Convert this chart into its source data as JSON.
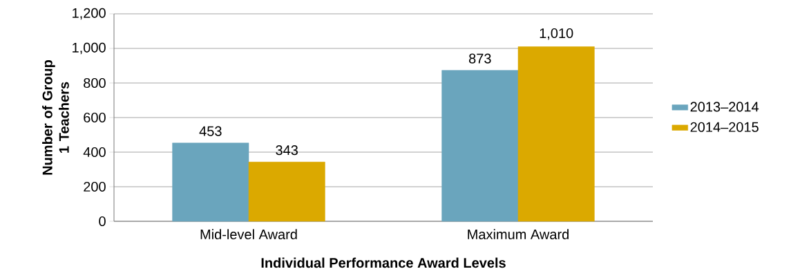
{
  "chart_data": {
    "type": "bar",
    "xlabel": "Individual Performance Award Levels",
    "ylabel": "Number of Group 1 Teachers",
    "categories": [
      "Mid-level Award",
      "Maximum Award"
    ],
    "series": [
      {
        "name": "2013–2014",
        "color": "#6aa5bd",
        "values": [
          453,
          873
        ],
        "value_labels": [
          "453",
          "873"
        ]
      },
      {
        "name": "2014–2015",
        "color": "#dba900",
        "values": [
          343,
          1010
        ],
        "value_labels": [
          "343",
          "1,010"
        ]
      }
    ],
    "ylim": [
      0,
      1200
    ],
    "yticks": [
      0,
      200,
      400,
      600,
      800,
      {
        "value": 1000,
        "label": "1,000"
      },
      {
        "value": 1200,
        "label": "1,200"
      }
    ],
    "grid": "y",
    "legend": "right"
  }
}
